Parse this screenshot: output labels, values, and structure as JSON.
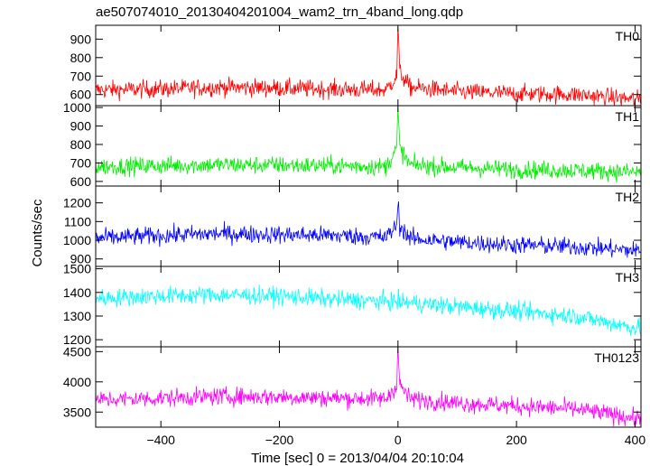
{
  "chart_data": {
    "type": "line",
    "title": "ae507074010_20130404201004_wam2_trn_4band_long.qdp",
    "xlabel": "Time [sec] 0 = 2013/04/04 20:10:04",
    "ylabel": "Counts/sec",
    "xlim": [
      -510,
      410
    ],
    "x_ticks": [
      -400,
      -200,
      0,
      200,
      400
    ],
    "x_tick_labels": [
      "−400",
      "−200",
      "0",
      "200",
      "400"
    ],
    "grid": false,
    "legend": "none",
    "panels": [
      {
        "name": "TH0",
        "color": "#ff0000",
        "ylim": [
          540,
          975
        ],
        "yticks": [
          600,
          700,
          800,
          900
        ],
        "series": {
          "x": [
            -510,
            -400,
            -300,
            -200,
            -100,
            -20,
            -2,
            0,
            3,
            20,
            100,
            200,
            300,
            400,
            410
          ],
          "y": [
            625,
            630,
            640,
            635,
            628,
            625,
            700,
            980,
            720,
            640,
            615,
            605,
            600,
            575,
            575
          ]
        }
      },
      {
        "name": "TH1",
        "color": "#00ee00",
        "ylim": [
          575,
          1010
        ],
        "yticks": [
          600,
          700,
          800,
          900,
          1000
        ],
        "series": {
          "x": [
            -510,
            -400,
            -300,
            -200,
            -100,
            -20,
            -2,
            0,
            3,
            20,
            100,
            200,
            300,
            400,
            410
          ],
          "y": [
            680,
            685,
            690,
            688,
            685,
            680,
            780,
            1000,
            780,
            690,
            675,
            665,
            660,
            650,
            650
          ]
        }
      },
      {
        "name": "TH2",
        "color": "#0000ff",
        "ylim": [
          860,
          1290
        ],
        "yticks": [
          900,
          1000,
          1100,
          1200
        ],
        "series": {
          "x": [
            -510,
            -400,
            -300,
            -200,
            -100,
            -20,
            -2,
            0,
            3,
            20,
            100,
            200,
            300,
            400,
            410
          ],
          "y": [
            1010,
            1025,
            1035,
            1030,
            1025,
            1015,
            1080,
            1200,
            1080,
            1010,
            990,
            975,
            965,
            945,
            945
          ]
        }
      },
      {
        "name": "TH3",
        "color": "#00ffff",
        "ylim": [
          1170,
          1510
        ],
        "yticks": [
          1200,
          1300,
          1400,
          1500
        ],
        "series": {
          "x": [
            -510,
            -400,
            -300,
            -200,
            -100,
            0,
            100,
            200,
            300,
            400,
            410
          ],
          "y": [
            1375,
            1385,
            1390,
            1385,
            1370,
            1360,
            1340,
            1320,
            1300,
            1250,
            1250
          ]
        }
      },
      {
        "name": "TH0123",
        "color": "#ff00ff",
        "ylim": [
          3250,
          4580
        ],
        "yticks": [
          3500,
          4000,
          4500
        ],
        "series": {
          "x": [
            -510,
            -400,
            -300,
            -200,
            -100,
            -20,
            -2,
            0,
            3,
            20,
            100,
            200,
            300,
            400,
            410
          ],
          "y": [
            3700,
            3730,
            3760,
            3750,
            3730,
            3720,
            3950,
            4580,
            3950,
            3720,
            3650,
            3600,
            3550,
            3400,
            3400
          ]
        }
      }
    ]
  }
}
